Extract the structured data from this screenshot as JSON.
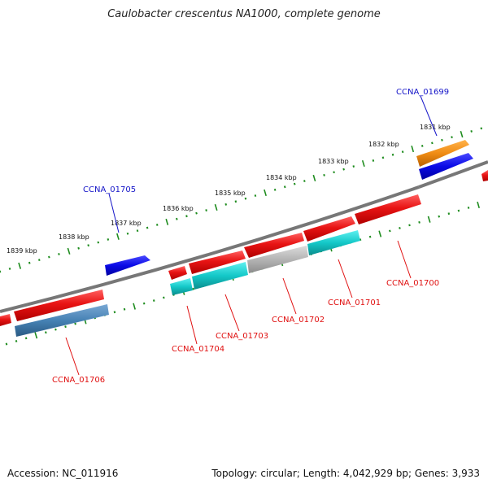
{
  "title": "Caulobacter crescentus NA1000, complete genome",
  "footer": {
    "accession": "Accession: NC_011916",
    "topology": "Topology: circular; Length: 4,042,929 bp; Genes: 3,933"
  },
  "scale_labels": [
    "1831 kbp",
    "1832 kbp",
    "1833 kbp",
    "1834 kbp",
    "1835 kbp",
    "1836 kbp",
    "1837 kbp",
    "1838 kbp",
    "1839 kbp"
  ],
  "gene_labels": [
    {
      "text": "CCNA_01699",
      "color": "#1414c8"
    },
    {
      "text": "CCNA_01705",
      "color": "#1414c8"
    },
    {
      "text": "CCNA_01700",
      "color": "#e01010"
    },
    {
      "text": "CCNA_01701",
      "color": "#e01010"
    },
    {
      "text": "CCNA_01702",
      "color": "#e01010"
    },
    {
      "text": "CCNA_01703",
      "color": "#e01010"
    },
    {
      "text": "CCNA_01704",
      "color": "#e01010"
    },
    {
      "text": "CCNA_01706",
      "color": "#e01010"
    }
  ],
  "colors": {
    "backbone": "#777777",
    "ruler_ticks": "#1e8c1e",
    "cds": "#e81414",
    "gene_blue": "#0a0ae6",
    "gene_orange": "#f08c14",
    "rna_cyan": "#14c8c8",
    "rna_grey": "#b4b4b4",
    "rna_steelblue": "#4682b4",
    "plus_label_line": "#1414c8",
    "minus_label_line": "#e01010"
  }
}
